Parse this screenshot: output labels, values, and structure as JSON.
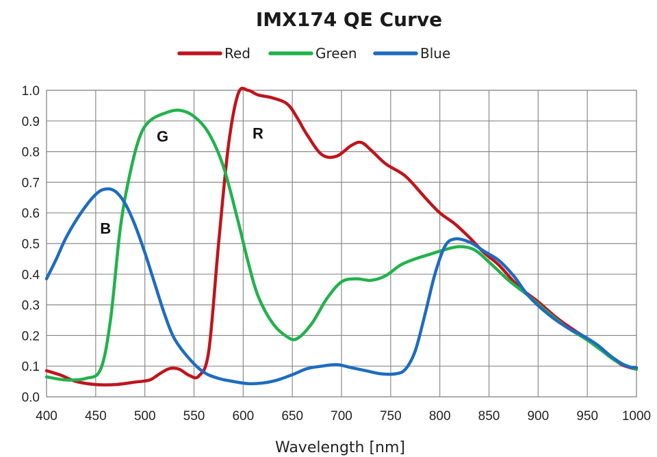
{
  "chart_data": {
    "type": "line",
    "title": "IMX174 QE Curve",
    "xlabel": "Wavelength [nm]",
    "ylabel": "",
    "xlim": [
      400,
      1000
    ],
    "ylim": [
      0,
      1.0
    ],
    "x_ticks": [
      400,
      450,
      500,
      550,
      600,
      650,
      700,
      750,
      800,
      850,
      900,
      950,
      1000
    ],
    "y_ticks": [
      "0.0",
      "0.1",
      "0.2",
      "0.3",
      "0.4",
      "0.5",
      "0.6",
      "0.7",
      "0.8",
      "0.9",
      "1.0"
    ],
    "grid": true,
    "legend_position": "top-center",
    "legend": [
      "Red",
      "Green",
      "Blue"
    ],
    "annotations": [
      {
        "text": "B",
        "x": 460,
        "y": 0.55
      },
      {
        "text": "G",
        "x": 518,
        "y": 0.85
      },
      {
        "text": "R",
        "x": 615,
        "y": 0.86
      }
    ],
    "series": [
      {
        "name": "Red",
        "color": "#c0141c",
        "points": [
          [
            400,
            0.085
          ],
          [
            415,
            0.07
          ],
          [
            430,
            0.05
          ],
          [
            450,
            0.04
          ],
          [
            470,
            0.04
          ],
          [
            490,
            0.048
          ],
          [
            505,
            0.055
          ],
          [
            515,
            0.075
          ],
          [
            525,
            0.092
          ],
          [
            535,
            0.09
          ],
          [
            545,
            0.07
          ],
          [
            555,
            0.068
          ],
          [
            565,
            0.15
          ],
          [
            575,
            0.5
          ],
          [
            585,
            0.82
          ],
          [
            595,
            0.99
          ],
          [
            605,
            1.0
          ],
          [
            615,
            0.985
          ],
          [
            630,
            0.975
          ],
          [
            645,
            0.955
          ],
          [
            655,
            0.91
          ],
          [
            665,
            0.855
          ],
          [
            680,
            0.79
          ],
          [
            695,
            0.785
          ],
          [
            710,
            0.82
          ],
          [
            720,
            0.83
          ],
          [
            730,
            0.805
          ],
          [
            745,
            0.76
          ],
          [
            765,
            0.72
          ],
          [
            785,
            0.65
          ],
          [
            800,
            0.6
          ],
          [
            815,
            0.565
          ],
          [
            830,
            0.52
          ],
          [
            845,
            0.47
          ],
          [
            860,
            0.43
          ],
          [
            880,
            0.36
          ],
          [
            900,
            0.31
          ],
          [
            920,
            0.255
          ],
          [
            940,
            0.21
          ],
          [
            955,
            0.18
          ],
          [
            970,
            0.14
          ],
          [
            985,
            0.105
          ],
          [
            1000,
            0.09
          ]
        ]
      },
      {
        "name": "Green",
        "color": "#22b24c",
        "points": [
          [
            400,
            0.065
          ],
          [
            420,
            0.055
          ],
          [
            440,
            0.06
          ],
          [
            455,
            0.09
          ],
          [
            465,
            0.25
          ],
          [
            475,
            0.55
          ],
          [
            485,
            0.73
          ],
          [
            495,
            0.85
          ],
          [
            505,
            0.9
          ],
          [
            520,
            0.925
          ],
          [
            535,
            0.935
          ],
          [
            550,
            0.915
          ],
          [
            565,
            0.86
          ],
          [
            580,
            0.75
          ],
          [
            595,
            0.57
          ],
          [
            605,
            0.44
          ],
          [
            615,
            0.33
          ],
          [
            630,
            0.24
          ],
          [
            645,
            0.195
          ],
          [
            655,
            0.19
          ],
          [
            670,
            0.24
          ],
          [
            685,
            0.32
          ],
          [
            700,
            0.375
          ],
          [
            715,
            0.385
          ],
          [
            730,
            0.38
          ],
          [
            745,
            0.395
          ],
          [
            760,
            0.43
          ],
          [
            775,
            0.45
          ],
          [
            790,
            0.465
          ],
          [
            805,
            0.48
          ],
          [
            820,
            0.49
          ],
          [
            835,
            0.48
          ],
          [
            850,
            0.44
          ],
          [
            870,
            0.38
          ],
          [
            890,
            0.33
          ],
          [
            910,
            0.275
          ],
          [
            930,
            0.225
          ],
          [
            950,
            0.185
          ],
          [
            965,
            0.15
          ],
          [
            980,
            0.115
          ],
          [
            1000,
            0.09
          ]
        ]
      },
      {
        "name": "Blue",
        "color": "#1e6cc0",
        "points": [
          [
            400,
            0.385
          ],
          [
            410,
            0.45
          ],
          [
            420,
            0.52
          ],
          [
            435,
            0.6
          ],
          [
            450,
            0.66
          ],
          [
            460,
            0.678
          ],
          [
            470,
            0.67
          ],
          [
            480,
            0.63
          ],
          [
            490,
            0.56
          ],
          [
            500,
            0.47
          ],
          [
            510,
            0.37
          ],
          [
            520,
            0.27
          ],
          [
            530,
            0.19
          ],
          [
            545,
            0.125
          ],
          [
            560,
            0.08
          ],
          [
            575,
            0.06
          ],
          [
            590,
            0.05
          ],
          [
            605,
            0.043
          ],
          [
            620,
            0.045
          ],
          [
            635,
            0.055
          ],
          [
            650,
            0.072
          ],
          [
            665,
            0.092
          ],
          [
            680,
            0.1
          ],
          [
            695,
            0.105
          ],
          [
            710,
            0.095
          ],
          [
            725,
            0.085
          ],
          [
            740,
            0.075
          ],
          [
            755,
            0.075
          ],
          [
            765,
            0.09
          ],
          [
            775,
            0.15
          ],
          [
            785,
            0.27
          ],
          [
            795,
            0.4
          ],
          [
            805,
            0.49
          ],
          [
            815,
            0.515
          ],
          [
            830,
            0.505
          ],
          [
            845,
            0.475
          ],
          [
            860,
            0.445
          ],
          [
            875,
            0.395
          ],
          [
            890,
            0.33
          ],
          [
            910,
            0.27
          ],
          [
            930,
            0.225
          ],
          [
            945,
            0.2
          ],
          [
            960,
            0.17
          ],
          [
            975,
            0.13
          ],
          [
            990,
            0.1
          ],
          [
            1000,
            0.095
          ]
        ]
      }
    ]
  }
}
